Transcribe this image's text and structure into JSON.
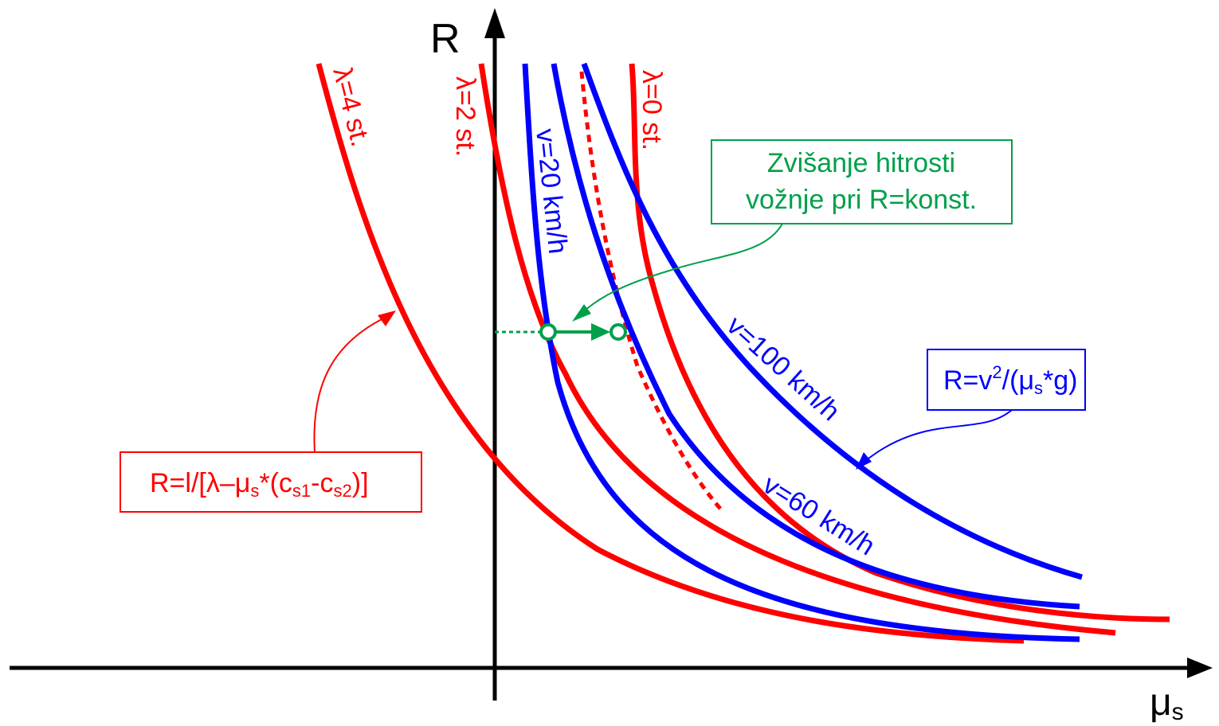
{
  "axes": {
    "y_label": "R",
    "x_label": "μ",
    "x_label_sub": "s"
  },
  "curves": {
    "lambda_4": "λ=4 st.",
    "lambda_2": "λ=2 st.",
    "lambda_0": "λ=0 st.",
    "v_20": "v=20 km/h",
    "v_60": "v=60 km/h",
    "v_100": "v=100 km/h"
  },
  "boxes": {
    "green_line1": "Zvišanje hitrosti",
    "green_line2": "vožnje pri R=konst.",
    "blue_formula": {
      "p1": "R=v",
      "sup": "2",
      "p2": "/(μ",
      "sub": "s",
      "p3": "*g)"
    },
    "red_formula": {
      "p1": "R=l/[λ–μ",
      "sub1": "s",
      "p2": "*(c",
      "sub2": "s1",
      "p3": "-c",
      "sub3": "s2",
      "p4": ")]"
    }
  },
  "colors": {
    "red": "#ff0000",
    "blue": "#0000ff",
    "green": "#00a04a",
    "axis": "#000000"
  }
}
